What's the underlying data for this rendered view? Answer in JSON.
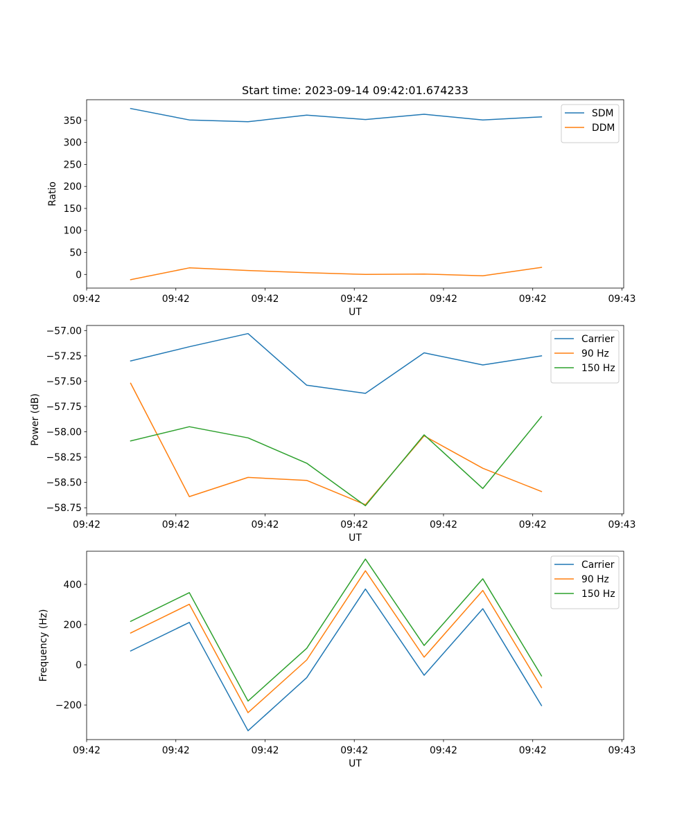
{
  "chart_data": [
    {
      "type": "line",
      "title": "Start time: 2023-09-14 09:42:01.674233",
      "xlabel": "UT",
      "ylabel": "Ratio",
      "x": [
        0,
        1,
        2,
        3,
        4,
        5,
        6,
        7
      ],
      "xlim": [
        -0.75,
        8.4
      ],
      "xticks": [
        -0.75,
        0.77,
        2.29,
        3.81,
        5.33,
        6.85,
        8.37
      ],
      "xtick_labels": [
        "09:42",
        "09:42",
        "09:42",
        "09:42",
        "09:42",
        "09:42",
        "09:42"
      ],
      "xtick_end_label": "09:43",
      "ylim": [
        -31,
        397
      ],
      "yticks": [
        0,
        50,
        100,
        150,
        200,
        250,
        300,
        350
      ],
      "ytick_labels": [
        "0",
        "50",
        "100",
        "150",
        "200",
        "250",
        "300",
        "350"
      ],
      "legend": "top-right",
      "series": [
        {
          "name": "SDM",
          "color": "#1f77b4",
          "values": [
            377,
            351,
            347,
            362,
            352,
            364,
            351,
            358
          ]
        },
        {
          "name": "DDM",
          "color": "#ff7f0e",
          "values": [
            -12,
            15,
            9,
            4,
            0,
            1,
            -3,
            16
          ]
        }
      ]
    },
    {
      "type": "line",
      "title": "",
      "xlabel": "UT",
      "ylabel": "Power (dB)",
      "x": [
        0,
        1,
        2,
        3,
        4,
        5,
        6,
        7
      ],
      "xlim": [
        -0.75,
        8.4
      ],
      "xticks": [
        -0.75,
        0.77,
        2.29,
        3.81,
        5.33,
        6.85,
        8.37
      ],
      "xtick_labels": [
        "09:42",
        "09:42",
        "09:42",
        "09:42",
        "09:42",
        "09:42",
        "09:42"
      ],
      "xtick_end_label": "09:43",
      "ylim": [
        -58.81,
        -56.95
      ],
      "yticks": [
        -58.75,
        -58.5,
        -58.25,
        -58.0,
        -57.75,
        -57.5,
        -57.25,
        -57.0
      ],
      "ytick_labels": [
        "−58.75",
        "−58.50",
        "−58.25",
        "−58.00",
        "−57.75",
        "−57.50",
        "−57.25",
        "−57.00"
      ],
      "legend": "top-right",
      "series": [
        {
          "name": "Carrier",
          "color": "#1f77b4",
          "values": [
            -57.3,
            -57.16,
            -57.03,
            -57.54,
            -57.62,
            -57.22,
            -57.34,
            -57.25
          ]
        },
        {
          "name": "90 Hz",
          "color": "#ff7f0e",
          "values": [
            -57.52,
            -58.64,
            -58.45,
            -58.48,
            -58.72,
            -58.04,
            -58.36,
            -58.59
          ]
        },
        {
          "name": "150 Hz",
          "color": "#2ca02c",
          "values": [
            -58.09,
            -57.95,
            -58.06,
            -58.31,
            -58.73,
            -58.03,
            -58.56,
            -57.85
          ]
        }
      ]
    },
    {
      "type": "line",
      "title": "",
      "xlabel": "UT",
      "ylabel": "Frequency (Hz)",
      "x": [
        0,
        1,
        2,
        3,
        4,
        5,
        6,
        7
      ],
      "xlim": [
        -0.75,
        8.4
      ],
      "xticks": [
        -0.75,
        0.77,
        2.29,
        3.81,
        5.33,
        6.85,
        8.37
      ],
      "xtick_labels": [
        "09:42",
        "09:42",
        "09:42",
        "09:42",
        "09:42",
        "09:42",
        "09:42"
      ],
      "xtick_end_label": "09:43",
      "ylim": [
        -372,
        565
      ],
      "yticks": [
        -200,
        0,
        200,
        400
      ],
      "ytick_labels": [
        "−200",
        "0",
        "200",
        "400"
      ],
      "legend": "top-right",
      "series": [
        {
          "name": "Carrier",
          "color": "#1f77b4",
          "values": [
            69,
            211,
            -328,
            -64,
            377,
            -52,
            279,
            -203
          ]
        },
        {
          "name": "90 Hz",
          "color": "#ff7f0e",
          "values": [
            158,
            301,
            -238,
            24,
            468,
            38,
            370,
            -113
          ]
        },
        {
          "name": "150 Hz",
          "color": "#2ca02c",
          "values": [
            216,
            359,
            -180,
            82,
            526,
            96,
            428,
            -55
          ]
        }
      ]
    }
  ]
}
